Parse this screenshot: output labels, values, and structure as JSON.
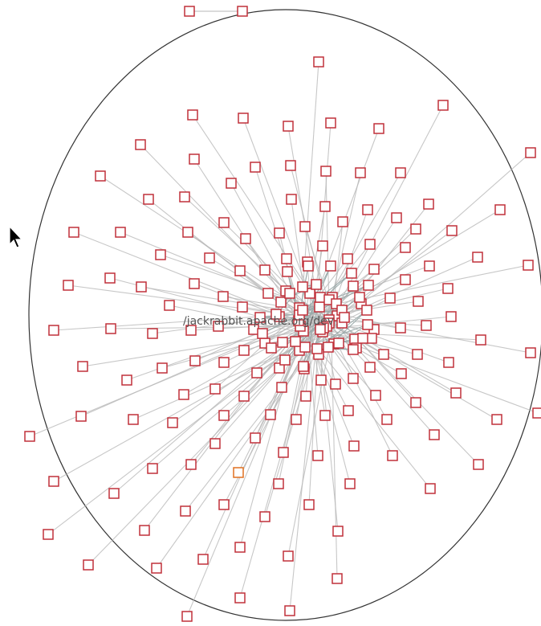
{
  "graph": {
    "center_label": "/jackrabbit.apache.org/dev",
    "node_count": 212,
    "node_shape": "square",
    "boundary_shape": "ellipse"
  },
  "colors": {
    "background": "#ffffff",
    "node_stroke": "#c0303a",
    "highlight_node_stroke": "#e07020",
    "edge": "#b9b9b9",
    "boundary": "#333333",
    "label": "#555555"
  },
  "cursor": {
    "icon": "mouse-pointer-icon"
  }
}
